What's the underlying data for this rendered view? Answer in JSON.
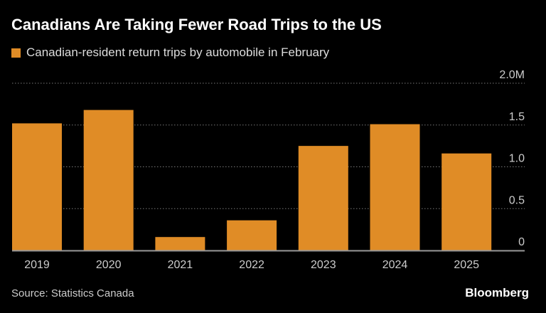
{
  "chart_data": {
    "type": "bar",
    "title": "Canadians Are Taking Fewer Road Trips to the US",
    "categories": [
      "2019",
      "2020",
      "2021",
      "2022",
      "2023",
      "2024",
      "2025"
    ],
    "series": [
      {
        "name": "Canadian-resident return trips by automobile in February",
        "values": [
          1.52,
          1.68,
          0.16,
          0.36,
          1.25,
          1.51,
          1.16
        ]
      }
    ],
    "ylim": [
      0,
      2.0
    ],
    "yticks": [
      0,
      0.5,
      1.0,
      1.5,
      2.0
    ],
    "ytick_labels": [
      "0",
      "0.5",
      "1.0",
      "1.5",
      "2.0M"
    ],
    "grid": true,
    "yaxis_position": "right",
    "bar_color": "#e08c26",
    "source": "Source: Statistics Canada"
  },
  "brand": "Bloomberg"
}
